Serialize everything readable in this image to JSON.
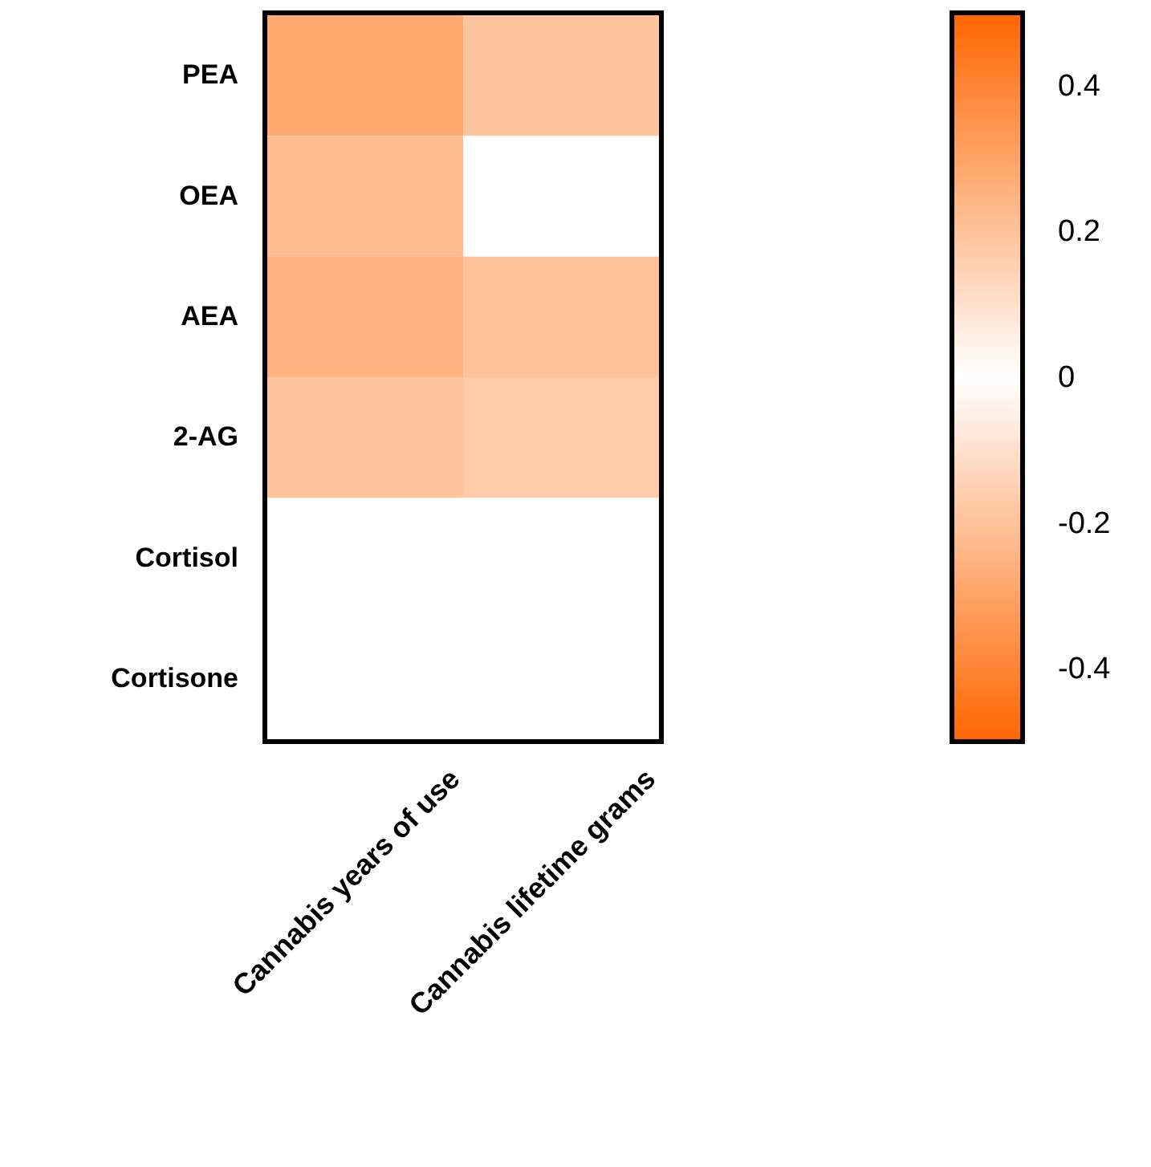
{
  "chart_data": {
    "type": "heatmap",
    "categories": [
      "Cannabis years of use",
      "Cannabis lifetime grams"
    ],
    "y_categories": [
      "PEA",
      "OEA",
      "AEA",
      "2-AG",
      "Cortisol",
      "Cortisone"
    ],
    "cells": [
      [
        0.28,
        0.19
      ],
      [
        0.22,
        null
      ],
      [
        0.25,
        0.2
      ],
      [
        0.19,
        0.17
      ],
      [
        null,
        null
      ],
      [
        null,
        null
      ]
    ],
    "clim": [
      -0.5,
      0.5
    ],
    "cticks": [
      0.4,
      0.2,
      0,
      -0.2,
      -0.4
    ]
  }
}
